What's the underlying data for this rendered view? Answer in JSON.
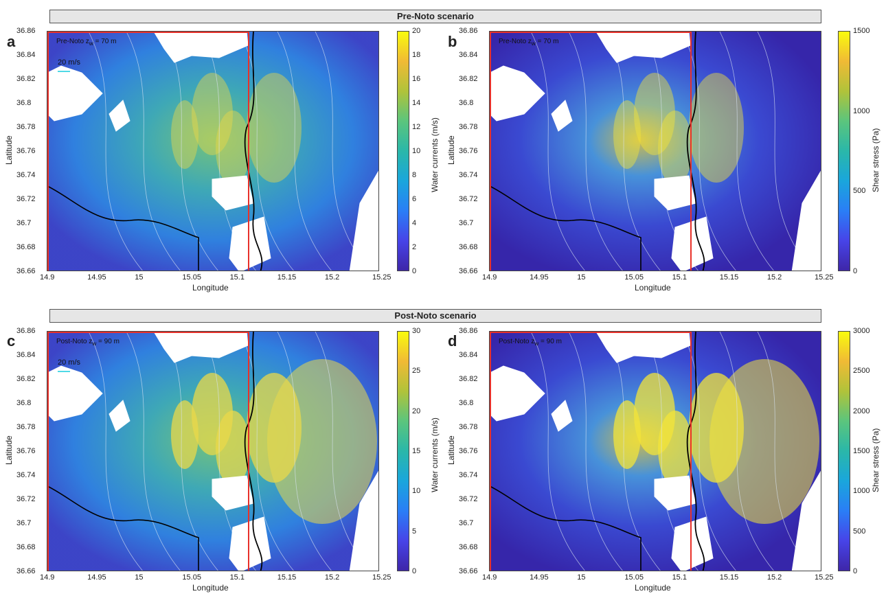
{
  "banners": {
    "top": "Pre-Noto scenario",
    "bottom": "Post-Noto scenario"
  },
  "panels": [
    {
      "letter": "a",
      "label": "Pre-Noto z",
      "label_sub": "w",
      "label_val": " = 70 m",
      "scale": "20 m/s",
      "colorbar_label": "Water currents (m/s)",
      "colorbar_ticks": [
        "20",
        "18",
        "16",
        "14",
        "12",
        "10",
        "8",
        "6",
        "4",
        "2",
        "0"
      ]
    },
    {
      "letter": "b",
      "label": "Pre-Noto z",
      "label_sub": "w",
      "label_val": " = 70 m",
      "scale": "",
      "colorbar_label": "Shear stress (Pa)",
      "colorbar_ticks": [
        "1500",
        "1000",
        "500",
        "0"
      ]
    },
    {
      "letter": "c",
      "label": "Post-Noto z",
      "label_sub": "w",
      "label_val": " = 90 m",
      "scale": "20 m/s",
      "colorbar_label": "Water currents (m/s)",
      "colorbar_ticks": [
        "30",
        "25",
        "20",
        "15",
        "10",
        "5",
        "0"
      ]
    },
    {
      "letter": "d",
      "label": "Post-Noto z",
      "label_sub": "w",
      "label_val": " = 90 m",
      "scale": "",
      "colorbar_label": "Shear stress (Pa)",
      "colorbar_ticks": [
        "3000",
        "2500",
        "2000",
        "1500",
        "1000",
        "500",
        "0"
      ]
    }
  ],
  "axes": {
    "xlabel": "Longitude",
    "ylabel": "Latitude",
    "xticks": [
      "14.9",
      "14.95",
      "15",
      "15.05",
      "15.1",
      "15.15",
      "15.2",
      "15.25"
    ],
    "yticks": [
      "36.86",
      "36.84",
      "36.82",
      "36.8",
      "36.78",
      "36.76",
      "36.74",
      "36.72",
      "36.7",
      "36.68",
      "36.66"
    ]
  },
  "colors": {
    "low": "#3e26a8",
    "mid": "#2ab7a9",
    "high": "#f9fb0e",
    "frame": "#e8312a",
    "fault": "#000000"
  }
}
